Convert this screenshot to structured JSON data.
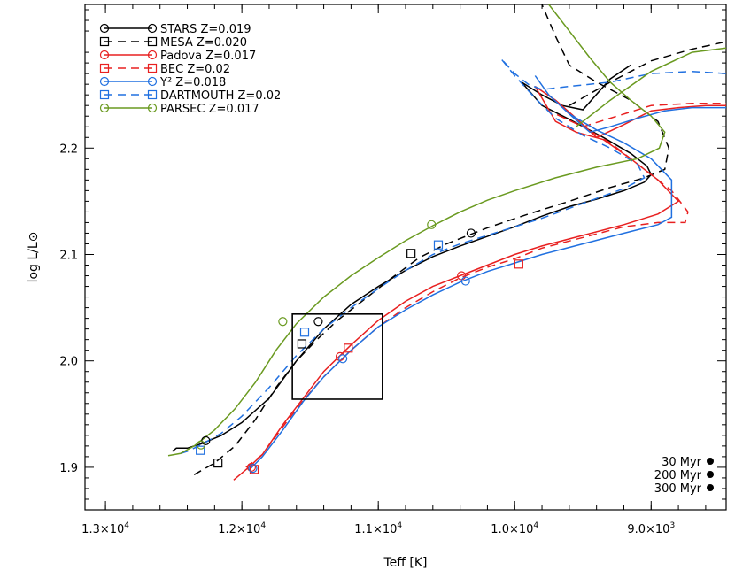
{
  "chart_data": {
    "type": "line",
    "title": "",
    "xlabel": "Teff [K]",
    "ylabel": "log L/L⊙",
    "xlim": [
      13150,
      8450
    ],
    "ylim": [
      1.86,
      2.335
    ],
    "x_reversed": true,
    "x_ticks": [
      {
        "value": 13000,
        "label": "1.3×10",
        "exp": "4"
      },
      {
        "value": 12000,
        "label": "1.2×10",
        "exp": "4"
      },
      {
        "value": 11000,
        "label": "1.1×10",
        "exp": "4"
      },
      {
        "value": 10000,
        "label": "1.0×10",
        "exp": "4"
      },
      {
        "value": 9000,
        "label": "9.0×10",
        "exp": "3"
      }
    ],
    "y_ticks": [
      {
        "value": 1.9,
        "label": "1.9"
      },
      {
        "value": 2.0,
        "label": "2.0"
      },
      {
        "value": 2.1,
        "label": "2.1"
      },
      {
        "value": 2.2,
        "label": "2.2"
      }
    ],
    "grid": false,
    "legend_position": "top-left",
    "series": [
      {
        "name": "STARS",
        "z_label": "Z=0.019",
        "color": "#000000",
        "dash": "solid",
        "marker": "circle",
        "points": [
          [
            12510,
            1.915
          ],
          [
            12480,
            1.918
          ],
          [
            12400,
            1.918
          ],
          [
            12300,
            1.922
          ],
          [
            12150,
            1.93
          ],
          [
            12000,
            1.942
          ],
          [
            11800,
            1.965
          ],
          [
            11600,
            2.0
          ],
          [
            11400,
            2.03
          ],
          [
            11200,
            2.053
          ],
          [
            11000,
            2.07
          ],
          [
            10800,
            2.085
          ],
          [
            10600,
            2.098
          ],
          [
            10400,
            2.108
          ],
          [
            10200,
            2.117
          ],
          [
            10000,
            2.126
          ],
          [
            9800,
            2.136
          ],
          [
            9600,
            2.145
          ],
          [
            9400,
            2.152
          ],
          [
            9200,
            2.16
          ],
          [
            9050,
            2.168
          ],
          [
            9000,
            2.175
          ],
          [
            9030,
            2.183
          ],
          [
            9150,
            2.195
          ],
          [
            9350,
            2.21
          ],
          [
            9600,
            2.227
          ],
          [
            9800,
            2.24
          ],
          [
            9950,
            2.262
          ],
          [
            9800,
            2.25
          ],
          [
            9650,
            2.24
          ],
          [
            9500,
            2.236
          ],
          [
            9300,
            2.265
          ],
          [
            9150,
            2.278
          ]
        ],
        "markers": [
          [
            12265,
            1.925
          ],
          [
            11440,
            2.037
          ],
          [
            10320,
            2.12
          ]
        ]
      },
      {
        "name": "MESA",
        "z_label": "Z=0.020",
        "color": "#000000",
        "dash": "dashed",
        "marker": "square",
        "points": [
          [
            12350,
            1.893
          ],
          [
            12200,
            1.904
          ],
          [
            12050,
            1.92
          ],
          [
            11900,
            1.945
          ],
          [
            11750,
            1.975
          ],
          [
            11600,
            2.0
          ],
          [
            11450,
            2.02
          ],
          [
            11300,
            2.038
          ],
          [
            11100,
            2.058
          ],
          [
            10900,
            2.078
          ],
          [
            10700,
            2.097
          ],
          [
            10500,
            2.11
          ],
          [
            10200,
            2.125
          ],
          [
            9900,
            2.138
          ],
          [
            9600,
            2.15
          ],
          [
            9300,
            2.163
          ],
          [
            9050,
            2.172
          ],
          [
            8900,
            2.18
          ],
          [
            8870,
            2.2
          ],
          [
            8950,
            2.225
          ],
          [
            9150,
            2.245
          ],
          [
            9400,
            2.262
          ],
          [
            9600,
            2.278
          ],
          [
            9700,
            2.305
          ],
          [
            9800,
            2.335
          ]
        ],
        "x2": [
          [
            9600,
            2.24
          ],
          [
            9300,
            2.262
          ],
          [
            9000,
            2.282
          ],
          [
            8700,
            2.293
          ],
          [
            8450,
            2.3
          ]
        ],
        "markers": [
          [
            12175,
            1.904
          ],
          [
            11560,
            2.016
          ],
          [
            10760,
            2.101
          ]
        ]
      },
      {
        "name": "Padova",
        "z_label": "Z=0.017",
        "color": "#e82020",
        "dash": "solid",
        "marker": "circle",
        "points": [
          [
            12060,
            1.888
          ],
          [
            11950,
            1.9
          ],
          [
            11850,
            1.912
          ],
          [
            11700,
            1.94
          ],
          [
            11550,
            1.965
          ],
          [
            11400,
            1.99
          ],
          [
            11200,
            2.015
          ],
          [
            11000,
            2.038
          ],
          [
            10800,
            2.056
          ],
          [
            10600,
            2.07
          ],
          [
            10400,
            2.08
          ],
          [
            10200,
            2.09
          ],
          [
            10000,
            2.1
          ],
          [
            9800,
            2.108
          ],
          [
            9500,
            2.118
          ],
          [
            9200,
            2.128
          ],
          [
            8950,
            2.138
          ],
          [
            8800,
            2.15
          ],
          [
            8950,
            2.17
          ],
          [
            9150,
            2.19
          ],
          [
            9350,
            2.208
          ],
          [
            9550,
            2.215
          ],
          [
            9700,
            2.225
          ],
          [
            9850,
            2.258
          ],
          [
            9700,
            2.245
          ],
          [
            9550,
            2.228
          ],
          [
            9400,
            2.21
          ],
          [
            9200,
            2.222
          ],
          [
            9000,
            2.235
          ],
          [
            8800,
            2.238
          ],
          [
            8600,
            2.24
          ],
          [
            8450,
            2.24
          ]
        ],
        "markers": [
          [
            11930,
            1.9
          ],
          [
            11280,
            2.004
          ],
          [
            10390,
            2.08
          ]
        ]
      },
      {
        "name": "BEC",
        "z_label": "Z=0.02",
        "color": "#e82020",
        "dash": "dashed",
        "marker": "square",
        "points": [
          [
            11970,
            1.9
          ],
          [
            11850,
            1.912
          ],
          [
            11700,
            1.938
          ],
          [
            11550,
            1.963
          ],
          [
            11400,
            1.985
          ],
          [
            11200,
            2.01
          ],
          [
            11000,
            2.032
          ],
          [
            10800,
            2.05
          ],
          [
            10600,
            2.065
          ],
          [
            10400,
            2.078
          ],
          [
            10200,
            2.088
          ],
          [
            10000,
            2.096
          ],
          [
            9800,
            2.106
          ],
          [
            9500,
            2.116
          ],
          [
            9200,
            2.126
          ],
          [
            8950,
            2.13
          ],
          [
            8750,
            2.13
          ],
          [
            8730,
            2.14
          ],
          [
            8850,
            2.16
          ],
          [
            9050,
            2.18
          ],
          [
            9300,
            2.205
          ],
          [
            9500,
            2.22
          ],
          [
            9700,
            2.232
          ],
          [
            9500,
            2.22
          ],
          [
            9300,
            2.228
          ],
          [
            9000,
            2.24
          ],
          [
            8700,
            2.242
          ],
          [
            8450,
            2.242
          ]
        ],
        "markers": [
          [
            11910,
            1.898
          ],
          [
            11220,
            2.012
          ],
          [
            9970,
            2.091
          ]
        ]
      },
      {
        "name": "Y²",
        "z_label": "Z=0.018",
        "color": "#2070e0",
        "dash": "solid",
        "marker": "circle",
        "points": [
          [
            11950,
            1.897
          ],
          [
            11850,
            1.91
          ],
          [
            11700,
            1.935
          ],
          [
            11550,
            1.962
          ],
          [
            11400,
            1.985
          ],
          [
            11200,
            2.01
          ],
          [
            11000,
            2.032
          ],
          [
            10800,
            2.048
          ],
          [
            10600,
            2.062
          ],
          [
            10400,
            2.074
          ],
          [
            10200,
            2.084
          ],
          [
            10000,
            2.092
          ],
          [
            9800,
            2.1
          ],
          [
            9500,
            2.11
          ],
          [
            9200,
            2.12
          ],
          [
            8950,
            2.128
          ],
          [
            8850,
            2.135
          ],
          [
            8850,
            2.17
          ],
          [
            9000,
            2.19
          ],
          [
            9200,
            2.205
          ],
          [
            9400,
            2.217
          ],
          [
            9600,
            2.232
          ],
          [
            9750,
            2.25
          ],
          [
            9850,
            2.268
          ],
          [
            9750,
            2.25
          ],
          [
            9600,
            2.232
          ],
          [
            9450,
            2.215
          ],
          [
            9300,
            2.22
          ],
          [
            9100,
            2.228
          ],
          [
            8900,
            2.235
          ],
          [
            8700,
            2.238
          ],
          [
            8450,
            2.238
          ]
        ],
        "markers": [
          [
            11920,
            1.899
          ],
          [
            11260,
            2.002
          ],
          [
            10360,
            2.075
          ]
        ]
      },
      {
        "name": "DARTMOUTH",
        "z_label": "Z=0.02",
        "color": "#2070e0",
        "dash": "dashed",
        "marker": "square",
        "points": [
          [
            12450,
            1.913
          ],
          [
            12400,
            1.915
          ],
          [
            12300,
            1.921
          ],
          [
            12150,
            1.932
          ],
          [
            12000,
            1.948
          ],
          [
            11800,
            1.975
          ],
          [
            11600,
            2.005
          ],
          [
            11400,
            2.03
          ],
          [
            11200,
            2.05
          ],
          [
            11000,
            2.068
          ],
          [
            10800,
            2.085
          ],
          [
            10600,
            2.1
          ],
          [
            10400,
            2.11
          ],
          [
            10200,
            2.118
          ],
          [
            10000,
            2.126
          ],
          [
            9800,
            2.134
          ],
          [
            9500,
            2.148
          ],
          [
            9200,
            2.162
          ],
          [
            9050,
            2.172
          ],
          [
            9100,
            2.185
          ],
          [
            9300,
            2.2
          ],
          [
            9500,
            2.212
          ],
          [
            9700,
            2.228
          ],
          [
            9850,
            2.247
          ],
          [
            10000,
            2.268
          ],
          [
            10100,
            2.284
          ],
          [
            10000,
            2.27
          ],
          [
            9900,
            2.26
          ],
          [
            9800,
            2.255
          ],
          [
            9600,
            2.258
          ],
          [
            9300,
            2.262
          ],
          [
            9000,
            2.27
          ],
          [
            8700,
            2.272
          ],
          [
            8450,
            2.27
          ]
        ],
        "markers": [
          [
            12305,
            1.916
          ],
          [
            11540,
            2.027
          ],
          [
            10560,
            2.109
          ]
        ]
      },
      {
        "name": "PARSEC",
        "z_label": "Z=0.017",
        "color": "#6a9a20",
        "dash": "solid",
        "marker": "circle",
        "points": [
          [
            12540,
            1.911
          ],
          [
            12450,
            1.913
          ],
          [
            12350,
            1.92
          ],
          [
            12200,
            1.935
          ],
          [
            12050,
            1.955
          ],
          [
            11900,
            1.98
          ],
          [
            11750,
            2.01
          ],
          [
            11600,
            2.035
          ],
          [
            11400,
            2.06
          ],
          [
            11200,
            2.08
          ],
          [
            11000,
            2.097
          ],
          [
            10800,
            2.113
          ],
          [
            10600,
            2.127
          ],
          [
            10400,
            2.14
          ],
          [
            10200,
            2.151
          ],
          [
            10000,
            2.16
          ],
          [
            9700,
            2.172
          ],
          [
            9400,
            2.182
          ],
          [
            9100,
            2.19
          ],
          [
            8940,
            2.2
          ],
          [
            8900,
            2.215
          ],
          [
            9000,
            2.23
          ],
          [
            9150,
            2.245
          ],
          [
            9300,
            2.262
          ],
          [
            9450,
            2.285
          ],
          [
            9600,
            2.31
          ],
          [
            9750,
            2.335
          ]
        ],
        "x2": [
          [
            9550,
            2.22
          ],
          [
            9300,
            2.245
          ],
          [
            9000,
            2.272
          ],
          [
            8700,
            2.29
          ],
          [
            8450,
            2.294
          ]
        ],
        "markers": [
          [
            12300,
            1.921
          ],
          [
            11700,
            2.037
          ],
          [
            10610,
            2.128
          ]
        ]
      }
    ],
    "box": {
      "x": [
        11630,
        10970
      ],
      "y": [
        1.964,
        2.044
      ]
    },
    "ages": [
      {
        "label": "30 Myr"
      },
      {
        "label": "200 Myr"
      },
      {
        "label": "300 Myr"
      }
    ]
  }
}
